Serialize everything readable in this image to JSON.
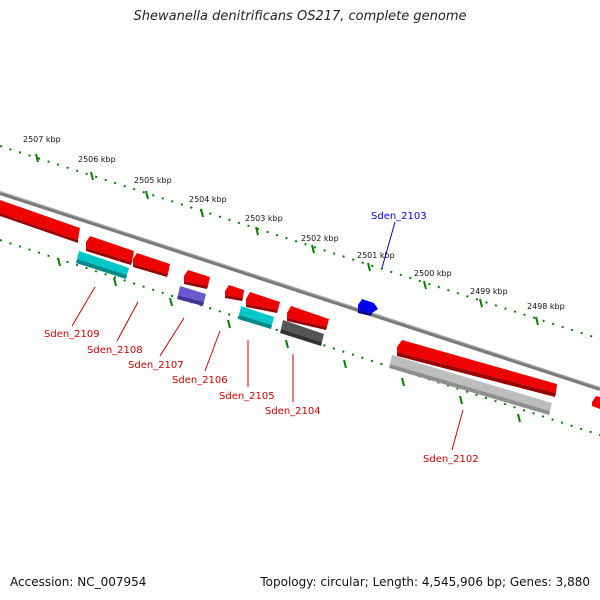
{
  "title": "Shewanella denitrificans OS217, complete genome",
  "footer": {
    "accession": "Accession: NC_007954",
    "summary": "Topology: circular; Length: 4,545,906 bp; Genes: 3,880"
  },
  "scale_labels": [
    "2507 kbp",
    "2506 kbp",
    "2505 kbp",
    "2504 kbp",
    "2503 kbp",
    "2502 kbp",
    "2501 kbp",
    "2500 kbp",
    "2499 kbp",
    "2498 kbp"
  ],
  "gene_labels": [
    "Sden_2103",
    "Sden_2109",
    "Sden_2108",
    "Sden_2107",
    "Sden_2106",
    "Sden_2105",
    "Sden_2104",
    "Sden_2102"
  ],
  "colors": {
    "backbone": "#808080",
    "tick_track": "#008000",
    "gene_red": "#ee0000",
    "label_red": "#cc0000",
    "label_blue": "#0000cc",
    "cyan": "#00c8c8",
    "purple": "#6a5acd",
    "blue": "#0000ee",
    "dark_gray": "#555555",
    "light_gray": "#bbbbbb"
  }
}
